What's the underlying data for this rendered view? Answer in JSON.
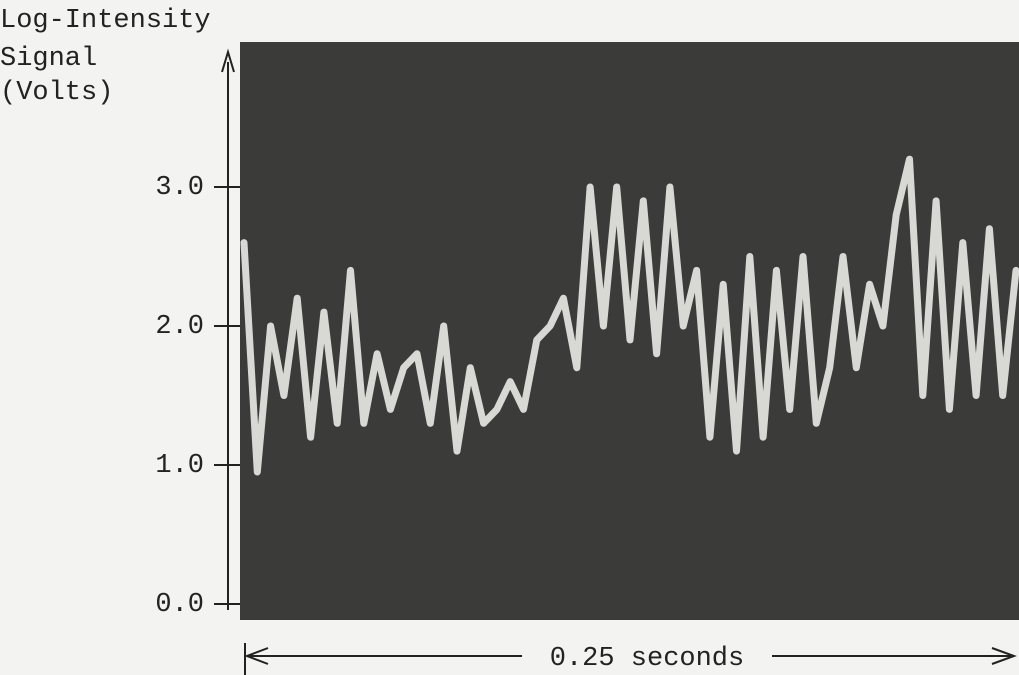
{
  "chart_data": {
    "type": "line",
    "ylabel": [
      "Log-Intensity",
      "Signal",
      "(Volts)"
    ],
    "xlabel": "0.25 seconds",
    "categories": [
      null,
      null,
      null,
      null,
      null,
      null,
      null,
      null,
      null,
      null,
      null,
      null,
      null,
      null,
      null,
      null,
      null,
      null,
      null,
      null,
      null,
      null,
      null,
      null,
      null,
      null,
      null,
      null,
      null,
      null,
      null,
      null,
      null,
      null,
      null,
      null,
      null,
      null,
      null,
      null,
      null,
      null,
      null,
      null,
      null,
      null,
      null,
      null,
      null,
      null,
      null,
      null,
      null,
      null,
      null,
      null,
      null,
      null,
      null
    ],
    "series": [
      {
        "color": "#e6e6e2",
        "values": [
          2.6,
          0.95,
          2.0,
          1.5,
          2.2,
          1.2,
          2.1,
          1.3,
          2.4,
          1.3,
          1.8,
          1.4,
          1.7,
          1.8,
          1.3,
          2.0,
          1.1,
          1.7,
          1.3,
          1.4,
          1.6,
          1.4,
          1.9,
          2.0,
          2.2,
          1.7,
          3.0,
          2.0,
          3.0,
          1.9,
          2.9,
          1.8,
          3.0,
          2.0,
          2.4,
          1.2,
          2.3,
          1.1,
          2.5,
          1.2,
          2.4,
          1.4,
          2.5,
          1.3,
          1.7,
          2.5,
          1.7,
          2.3,
          2.0,
          2.8,
          3.2,
          1.5,
          2.9,
          1.4,
          2.6,
          1.5,
          2.7,
          1.5,
          2.4
        ]
      }
    ],
    "ylim": [
      0,
      4
    ],
    "yticks": [
      {
        "value": 0,
        "label": "0.0"
      },
      {
        "value": 1,
        "label": "1.0"
      },
      {
        "value": 2,
        "label": "2.0"
      },
      {
        "value": 3,
        "label": "3.0"
      }
    ]
  }
}
